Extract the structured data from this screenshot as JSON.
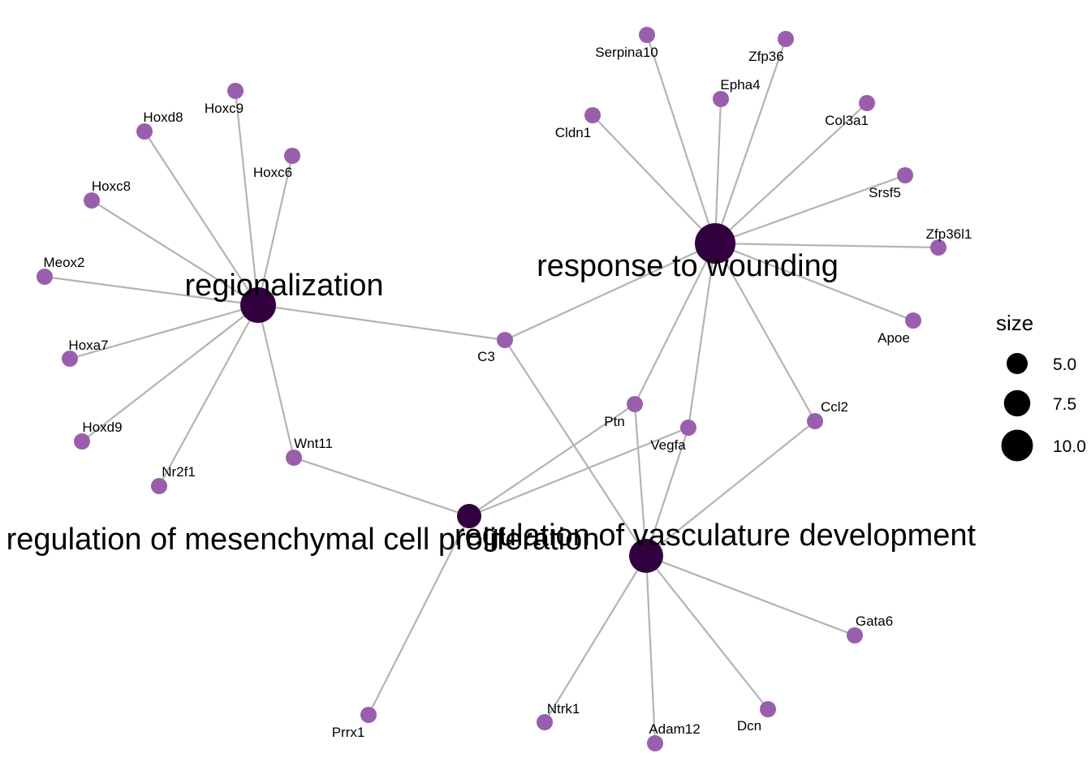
{
  "colors": {
    "gene": "#9a5fac",
    "term": "#33003f",
    "edge": "#b3b3b3",
    "legend_dot": "#000000"
  },
  "terms": [
    {
      "id": "t_region",
      "label": "regionalization"
    },
    {
      "id": "t_wound",
      "label": "response to wounding"
    },
    {
      "id": "t_mesen",
      "label": "regulation of mesenchymal cell proliferation"
    },
    {
      "id": "t_vasc",
      "label": "regulation of vasculature development"
    }
  ],
  "genes": [
    {
      "id": "Hoxd8",
      "label": "Hoxd8"
    },
    {
      "id": "Hoxc9",
      "label": "Hoxc9"
    },
    {
      "id": "Hoxc6",
      "label": "Hoxc6"
    },
    {
      "id": "Hoxc8",
      "label": "Hoxc8"
    },
    {
      "id": "Meox2",
      "label": "Meox2"
    },
    {
      "id": "Hoxa7",
      "label": "Hoxa7"
    },
    {
      "id": "Hoxd9",
      "label": "Hoxd9"
    },
    {
      "id": "Nr2f1",
      "label": "Nr2f1"
    },
    {
      "id": "Wnt11",
      "label": "Wnt11"
    },
    {
      "id": "C3",
      "label": "C3"
    },
    {
      "id": "Serpina10",
      "label": "Serpina10"
    },
    {
      "id": "Zfp36",
      "label": "Zfp36"
    },
    {
      "id": "Epha4",
      "label": "Epha4"
    },
    {
      "id": "Cldn1",
      "label": "Cldn1"
    },
    {
      "id": "Col3a1",
      "label": "Col3a1"
    },
    {
      "id": "Srsf5",
      "label": "Srsf5"
    },
    {
      "id": "Zfp36l1",
      "label": "Zfp36l1"
    },
    {
      "id": "Apoe",
      "label": "Apoe"
    },
    {
      "id": "Ccl2",
      "label": "Ccl2"
    },
    {
      "id": "Ptn",
      "label": "Ptn"
    },
    {
      "id": "Vegfa",
      "label": "Vegfa"
    },
    {
      "id": "Prrx1",
      "label": "Prrx1"
    },
    {
      "id": "Ntrk1",
      "label": "Ntrk1"
    },
    {
      "id": "Adam12",
      "label": "Adam12"
    },
    {
      "id": "Dcn",
      "label": "Dcn"
    },
    {
      "id": "Gata6",
      "label": "Gata6"
    }
  ],
  "edges": [
    [
      "t_region",
      "Hoxd8"
    ],
    [
      "t_region",
      "Hoxc9"
    ],
    [
      "t_region",
      "Hoxc6"
    ],
    [
      "t_region",
      "Hoxc8"
    ],
    [
      "t_region",
      "Meox2"
    ],
    [
      "t_region",
      "Hoxa7"
    ],
    [
      "t_region",
      "Hoxd9"
    ],
    [
      "t_region",
      "Nr2f1"
    ],
    [
      "t_region",
      "Wnt11"
    ],
    [
      "t_region",
      "C3"
    ],
    [
      "t_wound",
      "Serpina10"
    ],
    [
      "t_wound",
      "Zfp36"
    ],
    [
      "t_wound",
      "Epha4"
    ],
    [
      "t_wound",
      "Cldn1"
    ],
    [
      "t_wound",
      "Col3a1"
    ],
    [
      "t_wound",
      "Srsf5"
    ],
    [
      "t_wound",
      "Zfp36l1"
    ],
    [
      "t_wound",
      "Apoe"
    ],
    [
      "t_wound",
      "Ccl2"
    ],
    [
      "t_wound",
      "Ptn"
    ],
    [
      "t_wound",
      "Vegfa"
    ],
    [
      "t_wound",
      "C3"
    ],
    [
      "t_mesen",
      "Wnt11"
    ],
    [
      "t_mesen",
      "Ptn"
    ],
    [
      "t_mesen",
      "Vegfa"
    ],
    [
      "t_mesen",
      "Prrx1"
    ],
    [
      "t_vasc",
      "C3"
    ],
    [
      "t_vasc",
      "Ptn"
    ],
    [
      "t_vasc",
      "Vegfa"
    ],
    [
      "t_vasc",
      "Ccl2"
    ],
    [
      "t_vasc",
      "Ntrk1"
    ],
    [
      "t_vasc",
      "Adam12"
    ],
    [
      "t_vasc",
      "Dcn"
    ],
    [
      "t_vasc",
      "Gata6"
    ]
  ],
  "legend": {
    "title": "size",
    "items": [
      {
        "value": 5.0,
        "label": "5.0"
      },
      {
        "value": 7.5,
        "label": "7.5"
      },
      {
        "value": 10.0,
        "label": "10.0"
      }
    ]
  }
}
